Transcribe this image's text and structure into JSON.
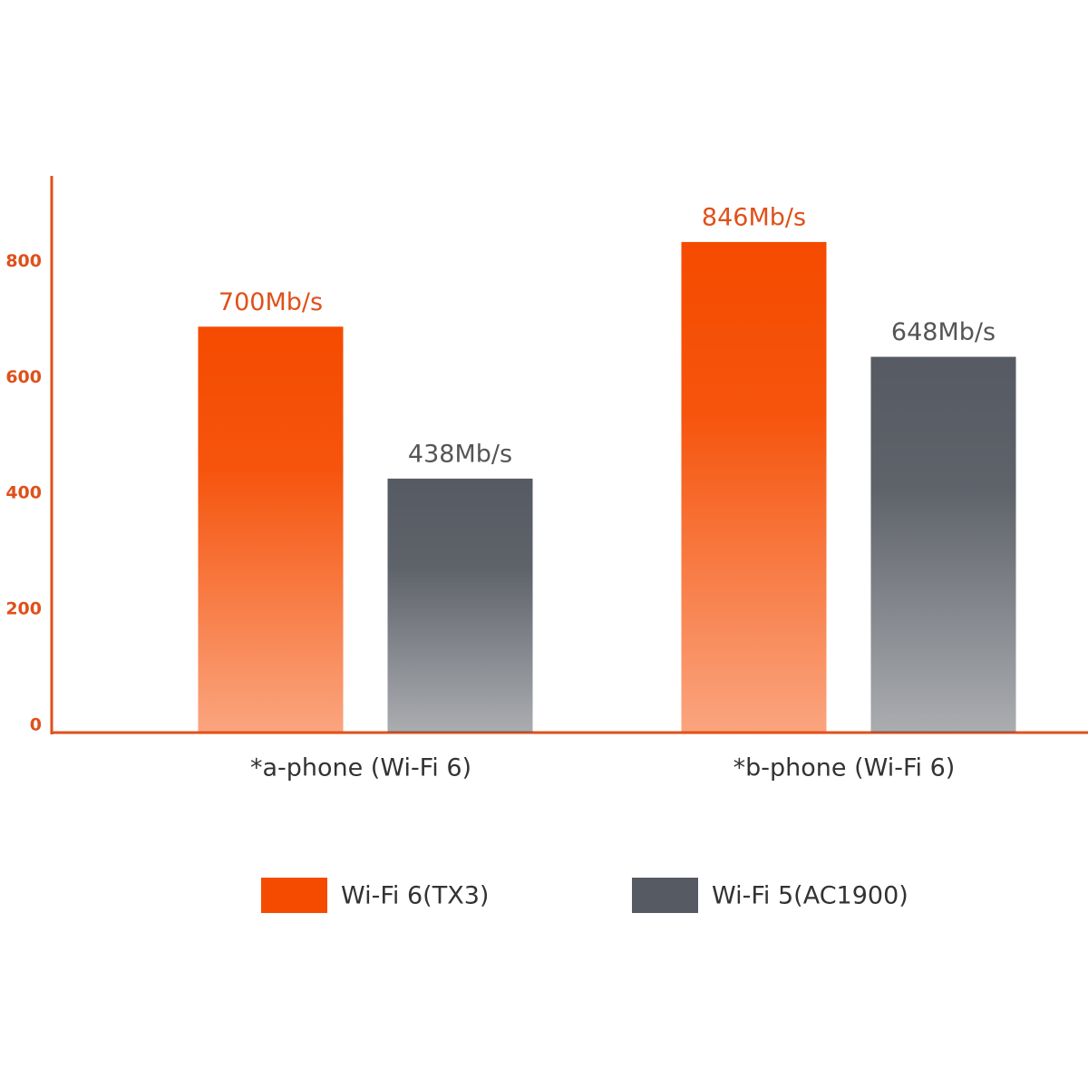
{
  "chart_data": {
    "type": "bar",
    "categories": [
      "*a-phone (Wi-Fi 6)",
      "*b-phone (Wi-Fi 6)"
    ],
    "series": [
      {
        "name": "Wi-Fi 6(TX3)",
        "color": "#f54b00",
        "values": [
          700,
          846
        ],
        "value_labels": [
          "700Mb/s",
          "846Mb/s"
        ]
      },
      {
        "name": "Wi-Fi 5(AC1900)",
        "color": "#565a62",
        "values": [
          438,
          648
        ],
        "value_labels": [
          "438Mb/s",
          "648Mb/s"
        ]
      }
    ],
    "ylim": [
      0,
      960
    ],
    "yticks": [
      0,
      200,
      400,
      600,
      800
    ],
    "axis_color": "#e0501a",
    "grid": false,
    "legend": "bottom"
  }
}
